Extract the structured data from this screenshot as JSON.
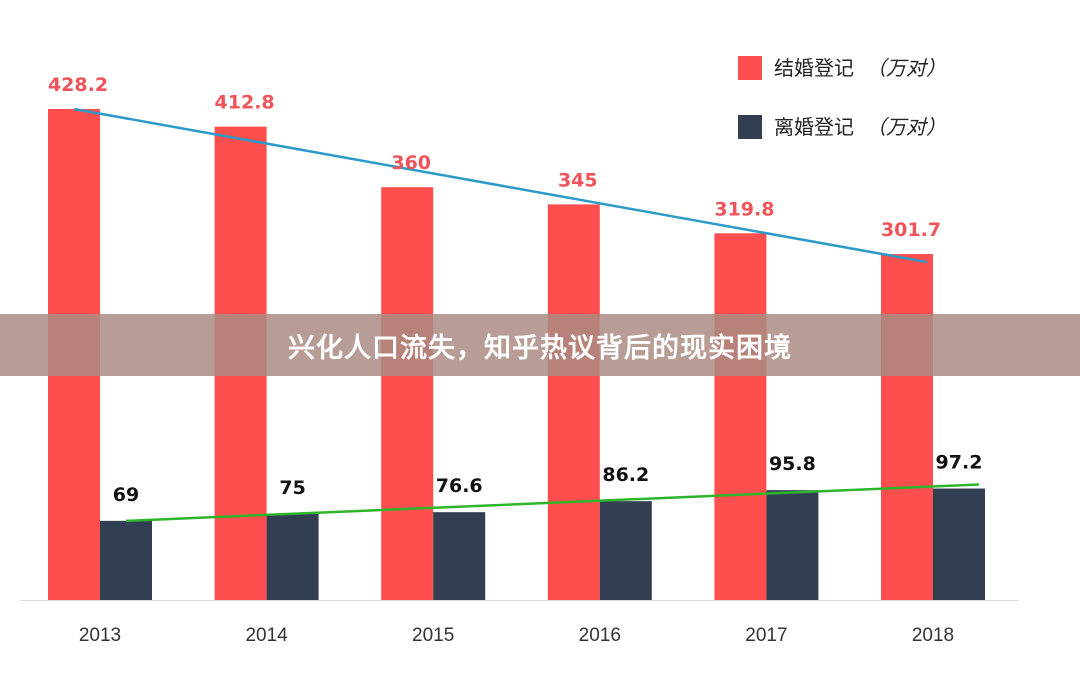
{
  "banner": {
    "title": "兴化人口流失，知乎热议背后的现实困境"
  },
  "colors": {
    "marriage": "#FF4E4E",
    "divorce": "#323E52",
    "marriage_trend": "#2B9AC8",
    "divorce_trend": "#2DB52B",
    "marriage_label": "#F0545A",
    "divorce_label": "#111111",
    "axis_text": "#333333"
  },
  "chart_data": {
    "type": "bar",
    "categories": [
      "2013",
      "2014",
      "2015",
      "2016",
      "2017",
      "2018"
    ],
    "series": [
      {
        "name": "结婚登记",
        "unit": "（万对）",
        "values": [
          428.2,
          412.8,
          360,
          345,
          319.8,
          301.7
        ]
      },
      {
        "name": "离婚登记",
        "unit": "（万对）",
        "values": [
          69,
          75,
          76.6,
          86.2,
          95.8,
          97.2
        ]
      }
    ],
    "data_labels": [
      [
        "428.2",
        "412.8",
        "360",
        "345",
        "319.8",
        "301.7"
      ],
      [
        "69",
        "75",
        "76.6",
        "86.2",
        "95.8",
        "97.2"
      ]
    ],
    "trendlines": [
      {
        "series": "结婚登记",
        "from": 428.2,
        "to": 301.7
      },
      {
        "series": "离婚登记",
        "from": 69,
        "to": 97.2
      }
    ],
    "ylim": [
      0,
      428.2
    ],
    "grid": false,
    "legend_position": "top-right",
    "xlabel": "",
    "ylabel": ""
  }
}
